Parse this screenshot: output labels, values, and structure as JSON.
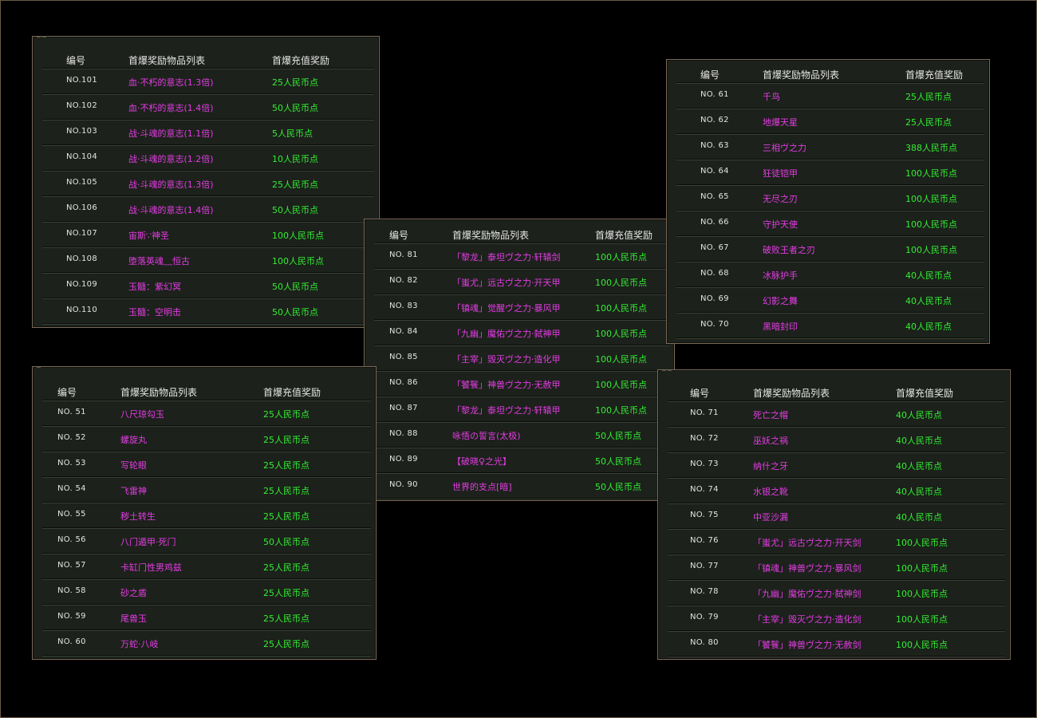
{
  "headers": {
    "id": "编号",
    "items": "首爆奖励物品列表",
    "reward": "首爆充值奖励"
  },
  "colors": {
    "item": "#e43ce4",
    "reward": "#33ee33",
    "id": "#e4e4e4",
    "panel_bg": "#1c211b"
  },
  "panels": [
    {
      "rows": [
        {
          "no": "NO.101",
          "item": "血·不朽的意志(1.3倍)",
          "reward": "25人民币点"
        },
        {
          "no": "NO.102",
          "item": "血·不朽的意志(1.4倍)",
          "reward": "50人民币点"
        },
        {
          "no": "NO.103",
          "item": "战·斗魂的意志(1.1倍)",
          "reward": "5人民币点"
        },
        {
          "no": "NO.104",
          "item": "战·斗魂的意志(1.2倍)",
          "reward": "10人民币点"
        },
        {
          "no": "NO.105",
          "item": "战·斗魂的意志(1.3倍)",
          "reward": "25人民币点"
        },
        {
          "no": "NO.106",
          "item": "战·斗魂的意志(1.4倍)",
          "reward": "50人民币点"
        },
        {
          "no": "NO.107",
          "item": "宙斯∵神圣",
          "reward": "100人民币点"
        },
        {
          "no": "NO.108",
          "item": "堕落英魂﹏恒古",
          "reward": "100人民币点"
        },
        {
          "no": "NO.109",
          "item": "玉髓：紫幻冥",
          "reward": "50人民币点"
        },
        {
          "no": "NO.110",
          "item": "玉髓：空明击",
          "reward": "50人民币点"
        }
      ]
    },
    {
      "rows": [
        {
          "no": "NO. 81",
          "item": "「黎龙」泰坦ヴ之力·轩辕剑",
          "reward": "100人民币点"
        },
        {
          "no": "NO. 82",
          "item": "「蚩尤」远古ヴ之力·开天甲",
          "reward": "100人民币点"
        },
        {
          "no": "NO. 83",
          "item": "「镇魂」觉醒ヴ之力·暴风甲",
          "reward": "100人民币点"
        },
        {
          "no": "NO. 84",
          "item": "「九幽」魔佑ヴ之力·弑神甲",
          "reward": "100人民币点"
        },
        {
          "no": "NO. 85",
          "item": "「主宰」毁灭ヴ之力·造化甲",
          "reward": "100人民币点"
        },
        {
          "no": "NO. 86",
          "item": "「饕餮」神兽ヴ之力·无赦甲",
          "reward": "100人民币点"
        },
        {
          "no": "NO. 87",
          "item": "「黎龙」泰坦ヴ之力·轩辕甲",
          "reward": "100人民币点"
        },
        {
          "no": "NO. 88",
          "item": "咏悟の誓言(太极)",
          "reward": "50人民币点"
        },
        {
          "no": "NO. 89",
          "item": "【破晓♀之光】",
          "reward": "50人民币点"
        },
        {
          "no": "NO. 90",
          "item": "世界的支点[暗]",
          "reward": "50人民币点"
        }
      ]
    },
    {
      "rows": [
        {
          "no": "NO. 61",
          "item": "千鸟",
          "reward": "25人民币点"
        },
        {
          "no": "NO. 62",
          "item": "地爆天星",
          "reward": "25人民币点"
        },
        {
          "no": "NO. 63",
          "item": "三相ヴ之力",
          "reward": "388人民币点"
        },
        {
          "no": "NO. 64",
          "item": "狂徒铠甲",
          "reward": "100人民币点"
        },
        {
          "no": "NO. 65",
          "item": "无尽之刃",
          "reward": "100人民币点"
        },
        {
          "no": "NO. 66",
          "item": "守护天使",
          "reward": "100人民币点"
        },
        {
          "no": "NO. 67",
          "item": "破败王者之刃",
          "reward": "100人民币点"
        },
        {
          "no": "NO. 68",
          "item": "冰脉护手",
          "reward": "40人民币点"
        },
        {
          "no": "NO. 69",
          "item": "幻影之舞",
          "reward": "40人民币点"
        },
        {
          "no": "NO. 70",
          "item": "黑暗封印",
          "reward": "40人民币点"
        }
      ]
    },
    {
      "rows": [
        {
          "no": "NO. 51",
          "item": "八尺琼勾玉",
          "reward": "25人民币点"
        },
        {
          "no": "NO. 52",
          "item": "螺旋丸",
          "reward": "25人民币点"
        },
        {
          "no": "NO. 53",
          "item": "写轮眼",
          "reward": "25人民币点"
        },
        {
          "no": "NO. 54",
          "item": "飞雷神",
          "reward": "25人民币点"
        },
        {
          "no": "NO. 55",
          "item": "秽土转生",
          "reward": "25人民币点"
        },
        {
          "no": "NO. 56",
          "item": "八门遁甲·死门",
          "reward": "50人民币点"
        },
        {
          "no": "NO. 57",
          "item": "卡缸门性男鸡兹",
          "reward": "25人民币点"
        },
        {
          "no": "NO. 58",
          "item": "砂之盾",
          "reward": "25人民币点"
        },
        {
          "no": "NO. 59",
          "item": "尾兽玉",
          "reward": "25人民币点"
        },
        {
          "no": "NO. 60",
          "item": "万蛇·八岐",
          "reward": "25人民币点"
        }
      ]
    },
    {
      "rows": [
        {
          "no": "NO. 71",
          "item": "死亡之帽",
          "reward": "40人民币点"
        },
        {
          "no": "NO. 72",
          "item": "巫妖之祸",
          "reward": "40人民币点"
        },
        {
          "no": "NO. 73",
          "item": "纳什之牙",
          "reward": "40人民币点"
        },
        {
          "no": "NO. 74",
          "item": "水银之靴",
          "reward": "40人民币点"
        },
        {
          "no": "NO. 75",
          "item": "中亚沙漏",
          "reward": "40人民币点"
        },
        {
          "no": "NO. 76",
          "item": "「蚩尤」远古ヴ之力·开天剑",
          "reward": "100人民币点"
        },
        {
          "no": "NO. 77",
          "item": "「镇魂」神兽ヴ之力·暴风剑",
          "reward": "100人民币点"
        },
        {
          "no": "NO. 78",
          "item": "「九幽」魔佑ヴ之力·弑神剑",
          "reward": "100人民币点"
        },
        {
          "no": "NO. 79",
          "item": "「主宰」毁灭ヴ之力·造化剑",
          "reward": "100人民币点"
        },
        {
          "no": "NO. 80",
          "item": "「饕餮」神兽ヴ之力·无赦剑",
          "reward": "100人民币点"
        }
      ]
    }
  ]
}
